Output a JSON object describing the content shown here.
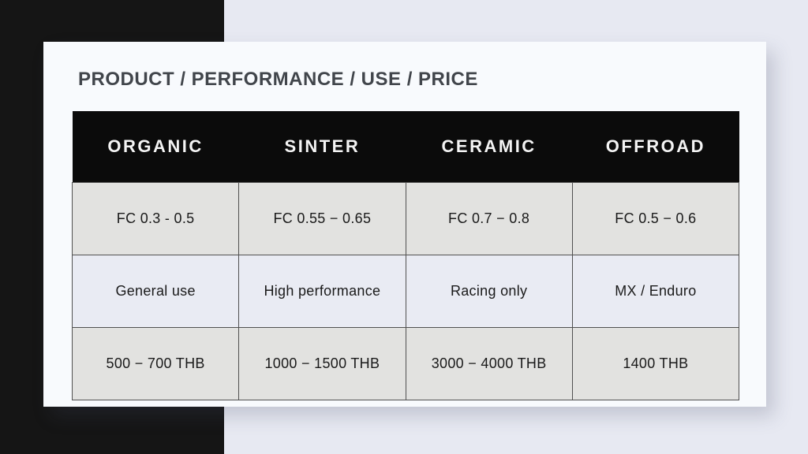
{
  "slide": {
    "title": "PRODUCT / PERFORMANCE / USE / PRICE"
  },
  "colors": {
    "black_panel": "#151515",
    "page_background": "#e7e9f2",
    "card_background": "#f8fafd",
    "header_background": "#0b0b0b",
    "header_text": "#f4f4f4",
    "row_gray": "#e2e2e0",
    "row_light": "#e9ebf3",
    "cell_border": "#515151",
    "title_text": "#41454b",
    "body_text": "#1a1a1a"
  },
  "table": {
    "columns": [
      "ORGANIC",
      "SINTER",
      "CERAMIC",
      "OFFROAD"
    ],
    "rows": [
      {
        "name": "friction-coefficient",
        "cells": [
          "FC 0.3 - 0.5",
          "FC 0.55 − 0.65",
          "FC 0.7 − 0.8",
          "FC 0.5 − 0.6"
        ]
      },
      {
        "name": "use",
        "cells": [
          "General use",
          "High performance",
          "Racing only",
          "MX / Enduro"
        ]
      },
      {
        "name": "price",
        "cells": [
          "500 − 700 THB",
          "1000 − 1500 THB",
          "3000 − 4000 THB",
          "1400 THB"
        ]
      }
    ]
  },
  "chart_data": {
    "type": "table",
    "title": "PRODUCT / PERFORMANCE / USE / PRICE",
    "columns": [
      "ORGANIC",
      "SINTER",
      "CERAMIC",
      "OFFROAD"
    ],
    "rows": [
      [
        "FC 0.3 - 0.5",
        "FC 0.55 − 0.65",
        "FC 0.7 − 0.8",
        "FC 0.5 − 0.6"
      ],
      [
        "General use",
        "High performance",
        "Racing only",
        "MX / Enduro"
      ],
      [
        "500 − 700 THB",
        "1000 − 1500 THB",
        "3000 − 4000 THB",
        "1400 THB"
      ]
    ]
  }
}
